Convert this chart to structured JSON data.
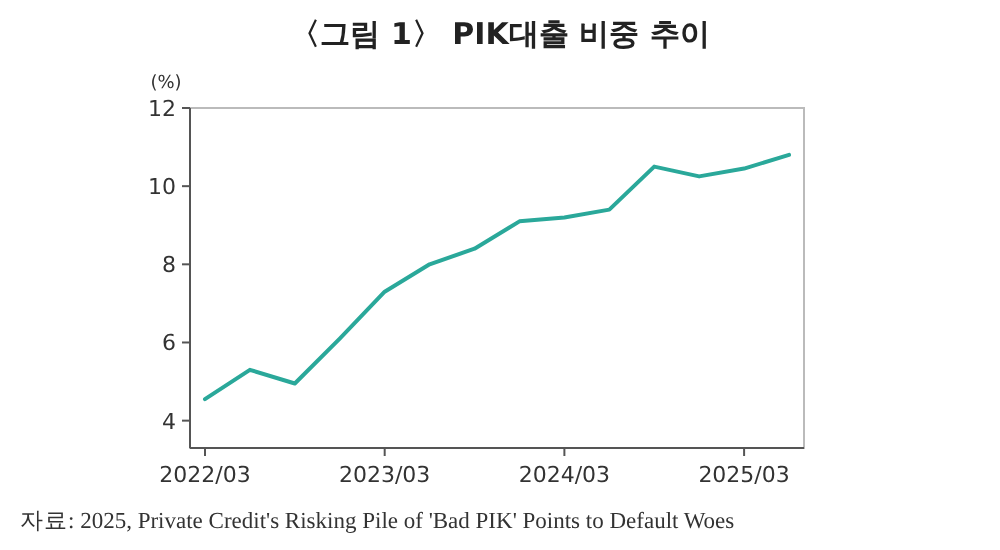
{
  "chart_data": {
    "type": "line",
    "title": "〈그림 1〉 PIK대출 비중 추이",
    "ylabel": "(%)",
    "x": [
      "2022-03",
      "2022-06",
      "2022-09",
      "2022-12",
      "2023-03",
      "2023-06",
      "2023-09",
      "2023-12",
      "2024-03",
      "2024-06",
      "2024-09",
      "2024-12",
      "2025-03",
      "2025-06"
    ],
    "series": [
      {
        "color": "#2aa89a",
        "values": [
          4.55,
          5.3,
          4.95,
          6.1,
          7.3,
          8.0,
          8.4,
          9.1,
          9.2,
          9.4,
          10.5,
          10.25,
          10.45,
          10.8
        ]
      }
    ],
    "xlim": [
      "2022-02",
      "2025-07"
    ],
    "xticks": [
      {
        "value": "2022-03",
        "label": "2022/03"
      },
      {
        "value": "2023-03",
        "label": "2023/03"
      },
      {
        "value": "2024-03",
        "label": "2024/03"
      },
      {
        "value": "2025-03",
        "label": "2025/03"
      }
    ],
    "ylim": [
      3.3,
      12
    ],
    "yticks": [
      4,
      6,
      8,
      10,
      12
    ],
    "grid": false,
    "marker": "none",
    "line_style": "solid",
    "annotations": [
      "자료: 2025, Private Credit's Risking Pile of 'Bad PIK' Points to Default Woes"
    ]
  }
}
